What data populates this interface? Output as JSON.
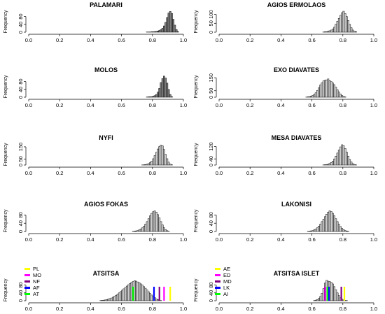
{
  "chart_data": [
    {
      "type": "histogram",
      "title": "PALAMARI",
      "ylabel": "Frequency",
      "xlim": [
        0,
        1
      ],
      "x_ticks": [
        "0.0",
        "0.2",
        "0.4",
        "0.6",
        "0.8",
        "1.0"
      ],
      "y_ticks": [
        "0",
        "40",
        "80"
      ],
      "y_tick_values": [
        0,
        40,
        80
      ],
      "ymax": 118,
      "bin_width": 0.01,
      "fill": "#808080",
      "bins_start": [
        0.76,
        0.77,
        0.78,
        0.79,
        0.8,
        0.81,
        0.82,
        0.83,
        0.84,
        0.85,
        0.86,
        0.87,
        0.88,
        0.89,
        0.9,
        0.91,
        0.92,
        0.93,
        0.94,
        0.95,
        0.96
      ],
      "counts": [
        1,
        1,
        1,
        2,
        2,
        3,
        4,
        6,
        9,
        13,
        20,
        32,
        50,
        75,
        98,
        106,
        96,
        66,
        36,
        13,
        3
      ]
    },
    {
      "type": "histogram",
      "title": "AGIOS ERMOLAOS",
      "ylabel": "Frequency",
      "xlim": [
        0,
        1
      ],
      "x_ticks": [
        "0.0",
        "0.2",
        "0.4",
        "0.6",
        "0.8",
        "1.0"
      ],
      "y_ticks": [
        "0",
        "50",
        "100"
      ],
      "y_tick_values": [
        0,
        50,
        100
      ],
      "ymax": 130,
      "bin_width": 0.01,
      "fill": "#d3d3d3",
      "bins_start": [
        0.67,
        0.68,
        0.69,
        0.7,
        0.71,
        0.72,
        0.73,
        0.74,
        0.75,
        0.76,
        0.77,
        0.78,
        0.79,
        0.8,
        0.81,
        0.82,
        0.83,
        0.84,
        0.85,
        0.86,
        0.87,
        0.88
      ],
      "counts": [
        1,
        2,
        3,
        5,
        8,
        12,
        18,
        28,
        45,
        62,
        78,
        95,
        110,
        118,
        105,
        88,
        66,
        44,
        25,
        12,
        5,
        2
      ]
    },
    {
      "type": "histogram",
      "title": "MOLOS",
      "ylabel": "Frequency",
      "xlim": [
        0,
        1
      ],
      "x_ticks": [
        "0.0",
        "0.2",
        "0.4",
        "0.6",
        "0.8",
        "1.0"
      ],
      "y_ticks": [
        "0",
        "40",
        "80"
      ],
      "y_tick_values": [
        0,
        40,
        80
      ],
      "ymax": 118,
      "bin_width": 0.01,
      "fill": "#808080",
      "bins_start": [
        0.76,
        0.77,
        0.78,
        0.79,
        0.8,
        0.81,
        0.82,
        0.83,
        0.84,
        0.85,
        0.86,
        0.87,
        0.88,
        0.89,
        0.9,
        0.91,
        0.92
      ],
      "counts": [
        1,
        2,
        2,
        3,
        5,
        8,
        14,
        26,
        45,
        75,
        95,
        108,
        98,
        72,
        40,
        14,
        3
      ]
    },
    {
      "type": "histogram",
      "title": "EXO DIAVATES",
      "ylabel": "Frequency",
      "xlim": [
        0,
        1
      ],
      "x_ticks": [
        "0.0",
        "0.2",
        "0.4",
        "0.6",
        "0.8",
        "1.0"
      ],
      "y_ticks": [
        "0",
        "50",
        "150"
      ],
      "y_tick_values": [
        0,
        50,
        150
      ],
      "ymax": 178,
      "bin_width": 0.01,
      "fill": "#d3d3d3",
      "bins_start": [
        0.56,
        0.57,
        0.58,
        0.59,
        0.6,
        0.61,
        0.62,
        0.63,
        0.64,
        0.65,
        0.66,
        0.67,
        0.68,
        0.69,
        0.7,
        0.71,
        0.72,
        0.73,
        0.74,
        0.75,
        0.76,
        0.77,
        0.78,
        0.79,
        0.8,
        0.81
      ],
      "counts": [
        1,
        3,
        5,
        8,
        14,
        22,
        34,
        52,
        72,
        95,
        112,
        126,
        130,
        134,
        141,
        128,
        120,
        110,
        97,
        78,
        58,
        40,
        25,
        13,
        6,
        2
      ]
    },
    {
      "type": "histogram",
      "title": "NYFI",
      "ylabel": "Frequency",
      "xlim": [
        0,
        1
      ],
      "x_ticks": [
        "0.0",
        "0.2",
        "0.4",
        "0.6",
        "0.8",
        "1.0"
      ],
      "y_ticks": [
        "0",
        "50",
        "150"
      ],
      "y_tick_values": [
        0,
        50,
        150
      ],
      "ymax": 190,
      "bin_width": 0.01,
      "fill": "#d3d3d3",
      "bins_start": [
        0.73,
        0.74,
        0.75,
        0.76,
        0.77,
        0.78,
        0.79,
        0.8,
        0.81,
        0.82,
        0.83,
        0.84,
        0.85,
        0.86,
        0.87,
        0.88,
        0.89,
        0.9,
        0.91,
        0.92
      ],
      "counts": [
        1,
        2,
        4,
        7,
        12,
        20,
        33,
        52,
        78,
        105,
        132,
        152,
        165,
        158,
        128,
        88,
        52,
        24,
        8,
        2
      ]
    },
    {
      "type": "histogram",
      "title": "MESA DIAVATES",
      "ylabel": "Frequency",
      "xlim": [
        0,
        1
      ],
      "x_ticks": [
        "0.0",
        "0.2",
        "0.4",
        "0.6",
        "0.8",
        "1.0"
      ],
      "y_ticks": [
        "0",
        "40",
        "120"
      ],
      "y_tick_values": [
        0,
        40,
        120
      ],
      "ymax": 150,
      "bin_width": 0.01,
      "fill": "#d3d3d3",
      "bins_start": [
        0.67,
        0.68,
        0.69,
        0.7,
        0.71,
        0.72,
        0.73,
        0.74,
        0.75,
        0.76,
        0.77,
        0.78,
        0.79,
        0.8,
        0.81,
        0.82,
        0.83,
        0.84,
        0.85,
        0.86,
        0.87,
        0.88
      ],
      "counts": [
        1,
        2,
        3,
        6,
        10,
        17,
        26,
        40,
        58,
        78,
        98,
        118,
        132,
        126,
        108,
        84,
        58,
        36,
        20,
        9,
        4,
        1
      ]
    },
    {
      "type": "histogram",
      "title": "AGIOS FOKAS",
      "ylabel": "Frequency",
      "xlim": [
        0,
        1
      ],
      "x_ticks": [
        "0.0",
        "0.2",
        "0.4",
        "0.6",
        "0.8",
        "1.0"
      ],
      "y_ticks": [
        "0",
        "40",
        "80"
      ],
      "y_tick_values": [
        0,
        40,
        80
      ],
      "ymax": 112,
      "bin_width": 0.01,
      "fill": "#d3d3d3",
      "bins_start": [
        0.67,
        0.68,
        0.69,
        0.7,
        0.71,
        0.72,
        0.73,
        0.74,
        0.75,
        0.76,
        0.77,
        0.78,
        0.79,
        0.8,
        0.81,
        0.82,
        0.83,
        0.84,
        0.85,
        0.86,
        0.87,
        0.88,
        0.89,
        0.9
      ],
      "counts": [
        1,
        2,
        3,
        5,
        8,
        12,
        18,
        26,
        36,
        48,
        62,
        76,
        88,
        96,
        100,
        94,
        82,
        66,
        48,
        32,
        18,
        9,
        4,
        1
      ]
    },
    {
      "type": "histogram",
      "title": "LAKONISI",
      "ylabel": "Frequency",
      "xlim": [
        0,
        1
      ],
      "x_ticks": [
        "0.0",
        "0.2",
        "0.4",
        "0.6",
        "0.8",
        "1.0"
      ],
      "y_ticks": [
        "0",
        "40",
        "80"
      ],
      "y_tick_values": [
        0,
        40,
        80
      ],
      "ymax": 112,
      "bin_width": 0.01,
      "fill": "#d3d3d3",
      "bins_start": [
        0.57,
        0.58,
        0.59,
        0.6,
        0.61,
        0.62,
        0.63,
        0.64,
        0.65,
        0.66,
        0.67,
        0.68,
        0.69,
        0.7,
        0.71,
        0.72,
        0.73,
        0.74,
        0.75,
        0.76,
        0.77,
        0.78,
        0.79,
        0.8,
        0.81,
        0.82,
        0.83
      ],
      "counts": [
        1,
        2,
        3,
        5,
        8,
        12,
        18,
        26,
        36,
        48,
        60,
        72,
        84,
        94,
        100,
        97,
        88,
        76,
        62,
        48,
        35,
        24,
        15,
        9,
        5,
        2,
        1
      ]
    },
    {
      "type": "histogram",
      "title": "ATSITSA",
      "ylabel": "Frequency",
      "xlim": [
        0,
        1
      ],
      "x_ticks": [
        "0.0",
        "0.2",
        "0.4",
        "0.6",
        "0.8",
        "1.0"
      ],
      "y_ticks": [
        "0",
        "40",
        "80"
      ],
      "y_tick_values": [
        0,
        40,
        80
      ],
      "ymax": 118,
      "bin_width": 0.01,
      "fill": "#d3d3d3",
      "bins_start": [
        0.46,
        0.47,
        0.48,
        0.49,
        0.5,
        0.51,
        0.52,
        0.53,
        0.54,
        0.55,
        0.56,
        0.57,
        0.58,
        0.59,
        0.6,
        0.61,
        0.62,
        0.63,
        0.64,
        0.65,
        0.66,
        0.67,
        0.68,
        0.69,
        0.7,
        0.71,
        0.72,
        0.73,
        0.74,
        0.75,
        0.76,
        0.77,
        0.78,
        0.79,
        0.8,
        0.81,
        0.82,
        0.83,
        0.84,
        0.85
      ],
      "counts": [
        1,
        2,
        3,
        4,
        6,
        8,
        11,
        14,
        18,
        23,
        28,
        34,
        40,
        47,
        54,
        61,
        68,
        75,
        82,
        88,
        94,
        98,
        102,
        100,
        96,
        92,
        86,
        80,
        72,
        64,
        55,
        46,
        37,
        29,
        22,
        16,
        10,
        6,
        3,
        1
      ],
      "legend": [
        {
          "label": "PL",
          "color": "#ffff00"
        },
        {
          "label": "MO",
          "color": "#ff00ff"
        },
        {
          "label": "NF",
          "color": "#800080"
        },
        {
          "label": "AF",
          "color": "#0000ff"
        },
        {
          "label": "AT",
          "color": "#00ff00"
        }
      ],
      "lines": [
        {
          "x": 0.915,
          "color": "#ffff00"
        },
        {
          "x": 0.875,
          "color": "#ff00ff"
        },
        {
          "x": 0.845,
          "color": "#800080"
        },
        {
          "x": 0.81,
          "color": "#0000ff"
        },
        {
          "x": 0.675,
          "color": "#00ff00"
        }
      ]
    },
    {
      "type": "histogram",
      "title": "ATSITSA ISLET",
      "ylabel": "Frequency",
      "xlim": [
        0,
        1
      ],
      "x_ticks": [
        "0.0",
        "0.2",
        "0.4",
        "0.6",
        "0.8",
        "1.0"
      ],
      "y_ticks": [
        "0",
        "40",
        "80"
      ],
      "y_tick_values": [
        0,
        40,
        80
      ],
      "ymax": 118,
      "bin_width": 0.01,
      "fill": "#d3d3d3",
      "bins_start": [
        0.61,
        0.62,
        0.63,
        0.64,
        0.65,
        0.66,
        0.67,
        0.68,
        0.69,
        0.7,
        0.71,
        0.72,
        0.73,
        0.74,
        0.75,
        0.76,
        0.77,
        0.78,
        0.79,
        0.8,
        0.81,
        0.82
      ],
      "counts": [
        1,
        3,
        6,
        12,
        22,
        38,
        62,
        90,
        104,
        100,
        98,
        94,
        86,
        72,
        56,
        40,
        26,
        15,
        8,
        4,
        2,
        1
      ],
      "legend": [
        {
          "label": "AE",
          "color": "#ffff00"
        },
        {
          "label": "ED",
          "color": "#ff00ff"
        },
        {
          "label": "MD",
          "color": "#800080"
        },
        {
          "label": "LK",
          "color": "#0000ff"
        },
        {
          "label": "AI",
          "color": "#00ff00"
        }
      ],
      "lines": [
        {
          "x": 0.81,
          "color": "#ffff00"
        },
        {
          "x": 0.685,
          "color": "#ff00ff"
        },
        {
          "x": 0.79,
          "color": "#800080"
        },
        {
          "x": 0.71,
          "color": "#0000ff"
        },
        {
          "x": 0.7,
          "color": "#00ff00"
        }
      ]
    }
  ]
}
